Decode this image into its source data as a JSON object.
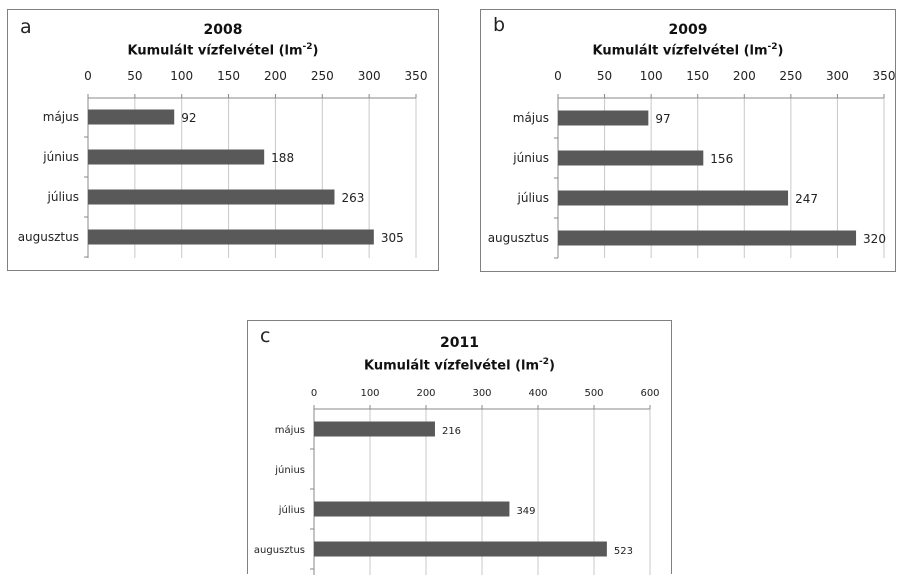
{
  "chart_data": [
    {
      "type": "bar",
      "panel_label": "a",
      "year": "2008",
      "title": "Kumulált vízfelvétel (lm",
      "title_sup": "-2",
      "title_tail": ")",
      "categories": [
        "május",
        "június",
        "július",
        "augusztus"
      ],
      "values": [
        92,
        188,
        263,
        305
      ],
      "data_labels": [
        "92",
        "188",
        "263",
        "305"
      ],
      "xlim": [
        0,
        350
      ],
      "ticks": [
        "0",
        "50",
        "100",
        "150",
        "200",
        "250",
        "300",
        "350"
      ],
      "grid": true,
      "orientation": "horizontal",
      "bar_color": "#595959"
    },
    {
      "type": "bar",
      "panel_label": "b",
      "year": "2009",
      "title": "Kumulált vízfelvétel (lm",
      "title_sup": "-2",
      "title_tail": ")",
      "categories": [
        "május",
        "június",
        "július",
        "augusztus"
      ],
      "values": [
        97,
        156,
        247,
        320
      ],
      "data_labels": [
        "97",
        "156",
        "247",
        "320"
      ],
      "xlim": [
        0,
        350
      ],
      "ticks": [
        "0",
        "50",
        "100",
        "150",
        "200",
        "250",
        "300",
        "350"
      ],
      "grid": true,
      "orientation": "horizontal",
      "bar_color": "#595959"
    },
    {
      "type": "bar",
      "panel_label": "c",
      "year": "2011",
      "title": "Kumulált vízfelvétel (lm",
      "title_sup": "-2",
      "title_tail": ")",
      "categories": [
        "május",
        "június",
        "július",
        "augusztus"
      ],
      "values": [
        216,
        null,
        349,
        523
      ],
      "data_labels": [
        "216",
        "",
        "349",
        "523"
      ],
      "xlim": [
        0,
        600
      ],
      "ticks": [
        "0",
        "100",
        "200",
        "300",
        "400",
        "500",
        "600"
      ],
      "grid": true,
      "orientation": "horizontal",
      "bar_color": "#595959"
    }
  ]
}
